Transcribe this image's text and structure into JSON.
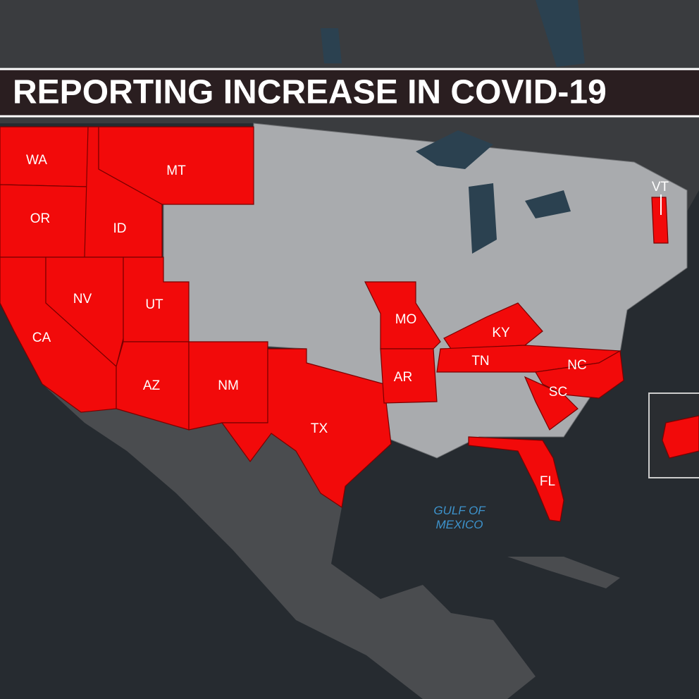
{
  "title": "REPORTING INCREASE IN COVID-19",
  "states": [
    {
      "label": "WA"
    },
    {
      "label": "MT"
    },
    {
      "label": "OR"
    },
    {
      "label": "ID"
    },
    {
      "label": "NV"
    },
    {
      "label": "UT"
    },
    {
      "label": "CA"
    },
    {
      "label": "AZ"
    },
    {
      "label": "NM"
    },
    {
      "label": "TX"
    },
    {
      "label": "MO"
    },
    {
      "label": "AR"
    },
    {
      "label": "KY"
    },
    {
      "label": "TN"
    },
    {
      "label": "NC"
    },
    {
      "label": "SC"
    },
    {
      "label": "FL"
    },
    {
      "label": "VT"
    }
  ],
  "water_label": [
    "GULF OF",
    "MEXICO"
  ]
}
